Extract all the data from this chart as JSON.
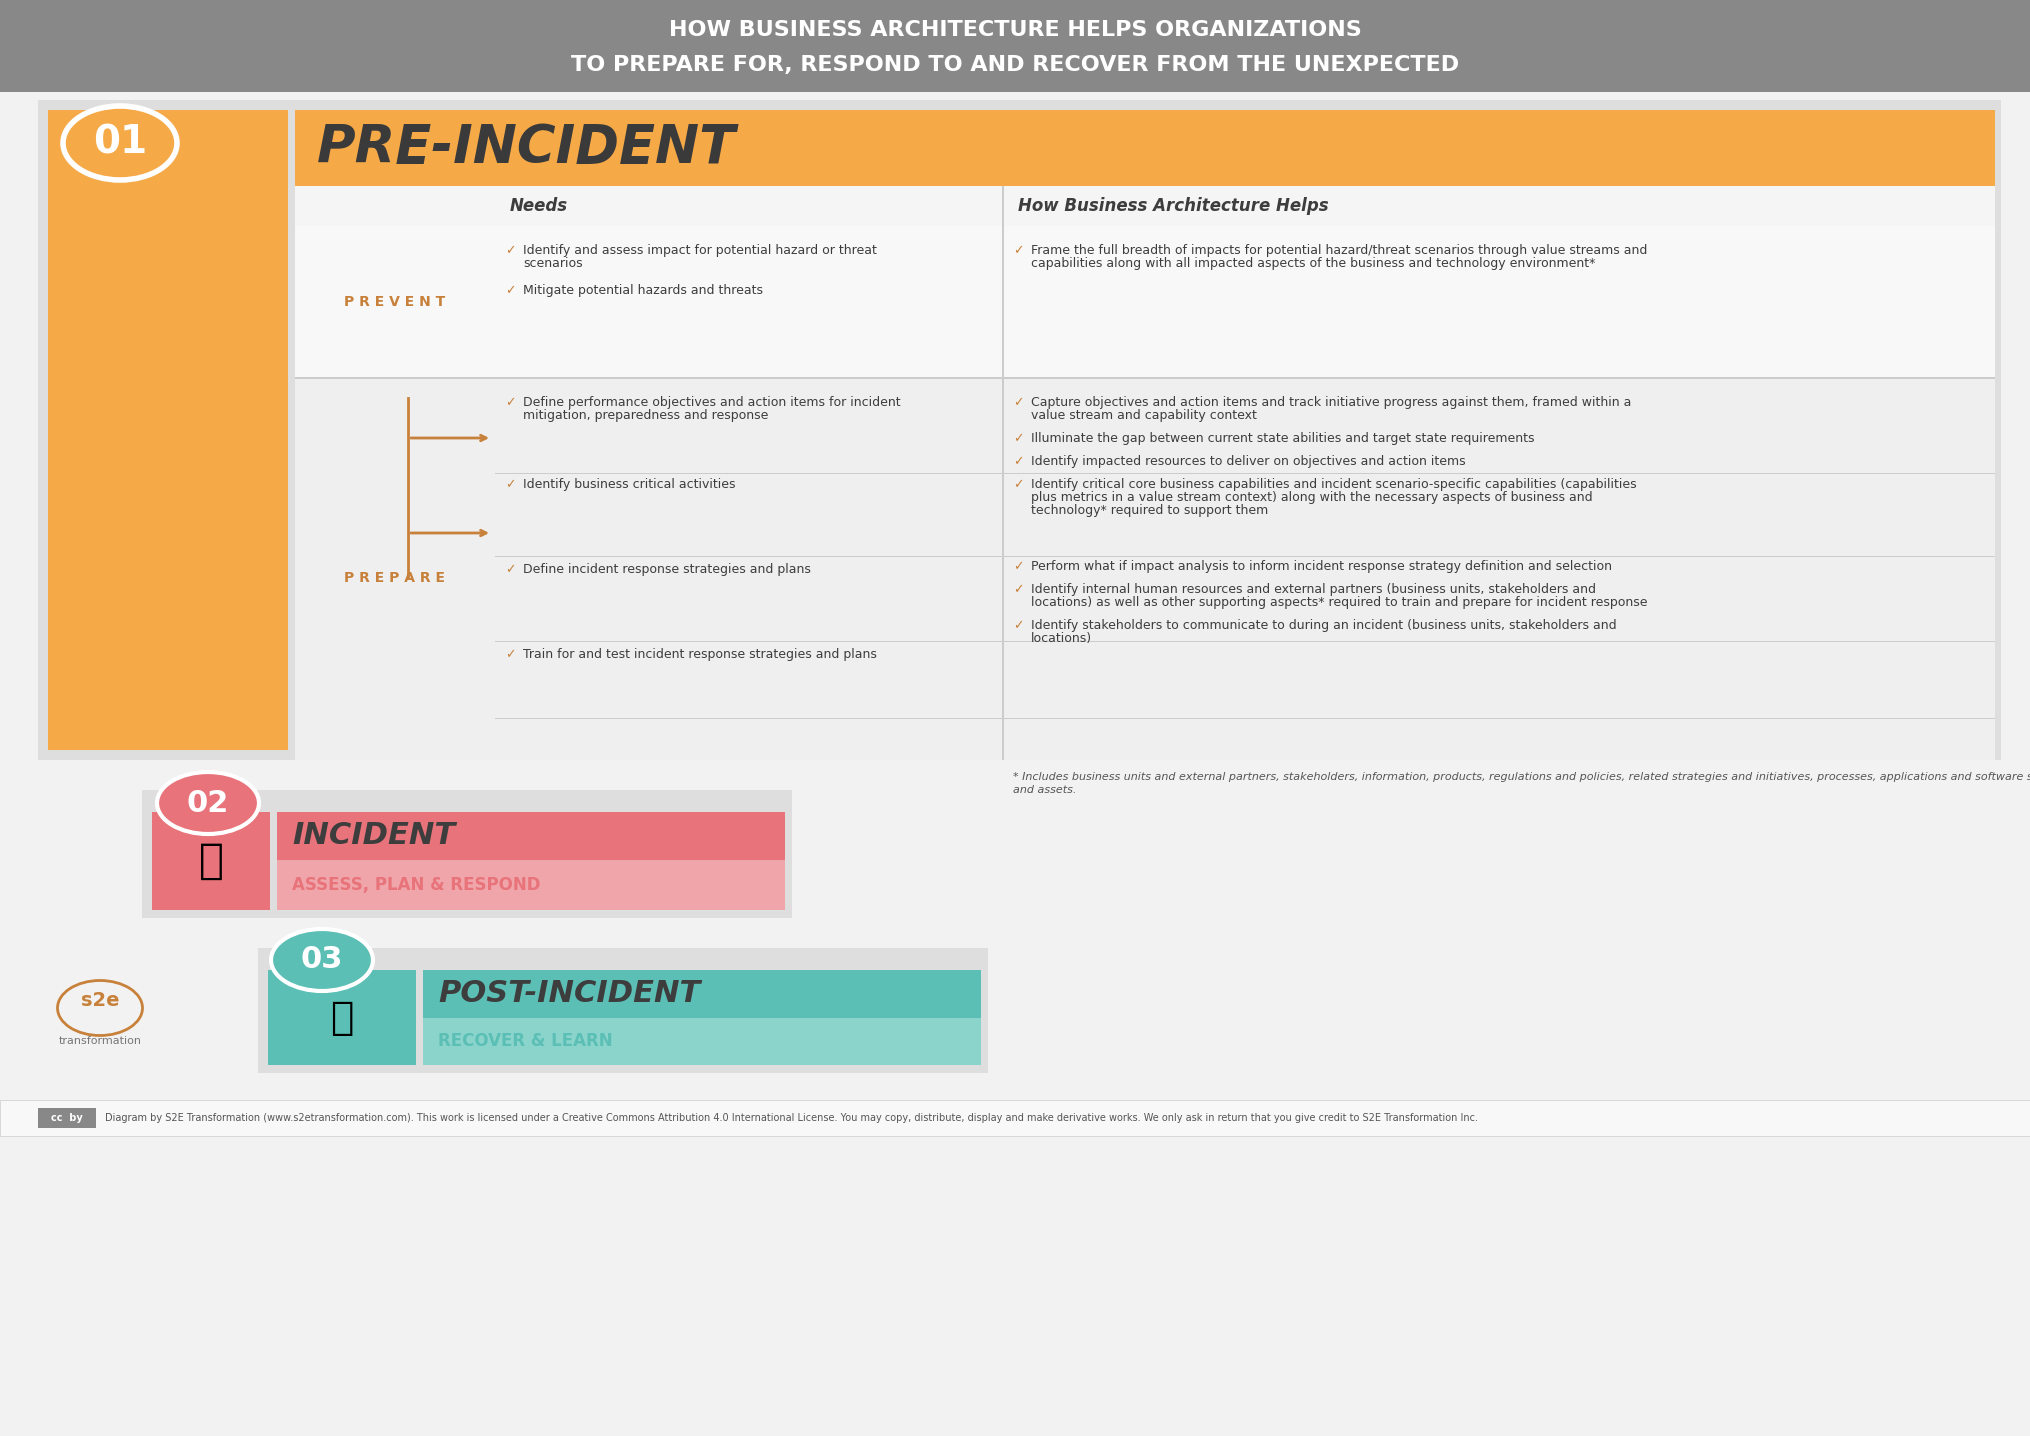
{
  "title_line1": "HOW BUSINESS ARCHITECTURE HELPS ORGANIZATIONS",
  "title_line2": "TO PREPARE FOR, RESPOND TO AND RECOVER FROM THE UNEXPECTED",
  "title_bg": "#888888",
  "title_color": "#ffffff",
  "bg_color": "#f2f2f2",
  "white": "#ffffff",
  "orange_light": "#f5a947",
  "orange_dark": "#c8813a",
  "red_pink": "#e8737a",
  "red_pink_light": "#f0a5aa",
  "teal": "#5bbfb5",
  "teal_light": "#8ad4cc",
  "dark_text": "#3d3d3d",
  "badge_01": "#f5a947",
  "badge_02": "#e8737a",
  "badge_03": "#5bbfb5",
  "prevent_label": "P R E V E N T",
  "prepare_label": "P R E P A R E",
  "needs_header": "Needs",
  "ba_header": "How Business Architecture Helps",
  "pre_incident_header": "PRE-INCIDENT",
  "incident_header": "INCIDENT",
  "incident_sub": "ASSESS, PLAN & RESPOND",
  "post_incident_header": "POST-INCIDENT",
  "post_incident_sub": "RECOVER & LEARN",
  "prevent_needs": [
    "Identify and assess impact for potential hazard or threat\nscenarios",
    "Mitigate potential hazards and threats"
  ],
  "prevent_ba": [
    "Frame the full breadth of impacts for potential hazard/threat scenarios through value streams and\ncapabilities along with all impacted aspects of the business and technology environment*"
  ],
  "prepare_needs": [
    "Define performance objectives and action items for incident\nmitigation, preparedness and response",
    "Identify business critical activities",
    "Define incident response strategies and plans",
    "Train for and test incident response strategies and plans"
  ],
  "prepare_ba_grp1": [
    "Capture objectives and action items and track initiative progress against them, framed within a\nvalue stream and capability context",
    "Illuminate the gap between current state abilities and target state requirements",
    "Identify impacted resources to deliver on objectives and action items"
  ],
  "prepare_ba_grp2": [
    "Identify critical core business capabilities and incident scenario-specific capabilities (capabilities\nplus metrics in a value stream context) along with the necessary aspects of business and\ntechnology* required to support them"
  ],
  "prepare_ba_grp3": [
    "Perform what if impact analysis to inform incident response strategy definition and selection",
    "Identify internal human resources and external partners (business units, stakeholders and\nlocations) as well as other supporting aspects* required to train and prepare for incident response",
    "Identify stakeholders to communicate to during an incident (business units, stakeholders and\nlocations)"
  ],
  "footnote_line1": "* Includes business units and external partners, stakeholders, information, products, regulations and policies, related strategies and initiatives, processes, applications and software services, locations",
  "footnote_line2": "and assets.",
  "copyright": "Diagram by S2E Transformation (www.s2etransformation.com). This work is licensed under a Creative Commons Attribution 4.0 International License. You may copy, distribute, display and make derivative works. We only ask in return that you give credit to S2E Transformation Inc."
}
